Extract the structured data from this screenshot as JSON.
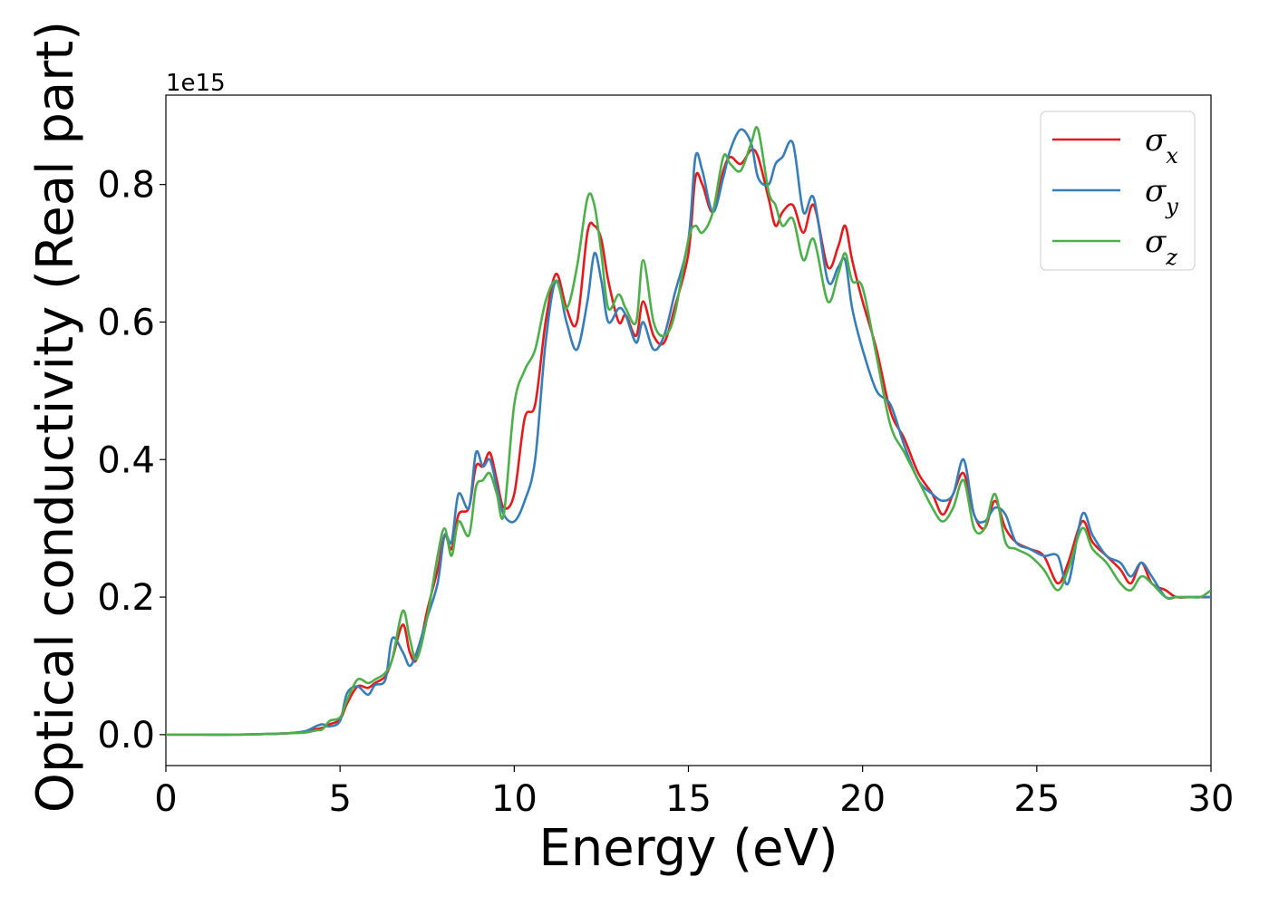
{
  "chart_data": {
    "type": "line",
    "xlabel": "Energy (eV)",
    "ylabel": "Optical conductivity (Real part)",
    "y_offset_text": "1e15",
    "xlim": [
      0,
      30
    ],
    "ylim": [
      -0.045,
      0.93
    ],
    "x_ticks": [
      0,
      5,
      10,
      15,
      20,
      25,
      30
    ],
    "x_tick_labels": [
      "0",
      "5",
      "10",
      "15",
      "20",
      "25",
      "30"
    ],
    "y_ticks": [
      0.0,
      0.2,
      0.4,
      0.6,
      0.8
    ],
    "y_tick_labels": [
      "0.0",
      "0.2",
      "0.4",
      "0.6",
      "0.8"
    ],
    "grid": false,
    "legend_position": "top-right",
    "x": [
      0,
      1,
      2,
      3,
      3.5,
      4,
      4.3,
      4.5,
      4.7,
      5,
      5.2,
      5.5,
      5.8,
      6,
      6.3,
      6.5,
      6.8,
      7,
      7.2,
      7.5,
      7.8,
      8,
      8.2,
      8.4,
      8.7,
      8.9,
      9.1,
      9.3,
      9.5,
      9.7,
      10,
      10.3,
      10.6,
      10.9,
      11.2,
      11.5,
      11.8,
      12.1,
      12.3,
      12.5,
      12.7,
      13,
      13.2,
      13.5,
      13.7,
      14,
      14.3,
      14.6,
      15,
      15.2,
      15.4,
      15.7,
      16,
      16.2,
      16.5,
      16.8,
      17,
      17.3,
      17.5,
      17.7,
      18,
      18.3,
      18.6,
      19,
      19.3,
      19.5,
      19.7,
      20,
      20.4,
      20.8,
      21.2,
      21.6,
      22,
      22.3,
      22.6,
      22.9,
      23.2,
      23.5,
      23.8,
      24.1,
      24.4,
      24.8,
      25.2,
      25.6,
      25.9,
      26.3,
      26.6,
      27,
      27.4,
      27.7,
      28,
      28.3,
      28.7,
      29,
      29.4,
      29.7,
      30
    ],
    "series": [
      {
        "name": "σx",
        "color": "#e41a1c",
        "values": [
          0,
          0,
          0,
          0.001,
          0.002,
          0.004,
          0.008,
          0.01,
          0.015,
          0.022,
          0.045,
          0.07,
          0.068,
          0.075,
          0.085,
          0.11,
          0.16,
          0.12,
          0.11,
          0.18,
          0.24,
          0.29,
          0.27,
          0.32,
          0.33,
          0.39,
          0.39,
          0.41,
          0.37,
          0.33,
          0.35,
          0.46,
          0.48,
          0.6,
          0.67,
          0.62,
          0.6,
          0.73,
          0.74,
          0.72,
          0.66,
          0.6,
          0.61,
          0.58,
          0.63,
          0.58,
          0.57,
          0.62,
          0.7,
          0.81,
          0.8,
          0.76,
          0.82,
          0.84,
          0.83,
          0.85,
          0.84,
          0.78,
          0.74,
          0.76,
          0.77,
          0.73,
          0.77,
          0.68,
          0.71,
          0.74,
          0.69,
          0.63,
          0.56,
          0.47,
          0.43,
          0.38,
          0.35,
          0.32,
          0.35,
          0.38,
          0.32,
          0.3,
          0.34,
          0.3,
          0.28,
          0.27,
          0.26,
          0.22,
          0.25,
          0.31,
          0.28,
          0.26,
          0.24,
          0.22,
          0.25,
          0.22,
          0.21,
          0.2,
          0.2,
          0.2,
          0.2
        ]
      },
      {
        "name": "σy",
        "color": "#377eb8",
        "values": [
          0,
          0,
          0,
          0.001,
          0.002,
          0.005,
          0.012,
          0.015,
          0.012,
          0.02,
          0.06,
          0.07,
          0.058,
          0.072,
          0.08,
          0.14,
          0.12,
          0.1,
          0.12,
          0.17,
          0.22,
          0.29,
          0.28,
          0.35,
          0.33,
          0.41,
          0.39,
          0.4,
          0.36,
          0.32,
          0.31,
          0.34,
          0.4,
          0.57,
          0.66,
          0.6,
          0.56,
          0.63,
          0.7,
          0.66,
          0.6,
          0.62,
          0.61,
          0.57,
          0.6,
          0.56,
          0.58,
          0.64,
          0.72,
          0.84,
          0.82,
          0.76,
          0.81,
          0.85,
          0.88,
          0.86,
          0.81,
          0.8,
          0.83,
          0.84,
          0.86,
          0.76,
          0.78,
          0.66,
          0.68,
          0.69,
          0.62,
          0.56,
          0.5,
          0.48,
          0.42,
          0.37,
          0.35,
          0.34,
          0.35,
          0.4,
          0.32,
          0.31,
          0.33,
          0.32,
          0.28,
          0.27,
          0.26,
          0.26,
          0.22,
          0.32,
          0.29,
          0.26,
          0.25,
          0.23,
          0.25,
          0.23,
          0.2,
          0.2,
          0.2,
          0.2,
          0.2
        ]
      },
      {
        "name": "σz",
        "color": "#4daf4a",
        "values": [
          0,
          0,
          0,
          0.001,
          0.002,
          0.003,
          0.006,
          0.008,
          0.02,
          0.025,
          0.05,
          0.08,
          0.075,
          0.08,
          0.09,
          0.11,
          0.18,
          0.14,
          0.11,
          0.17,
          0.26,
          0.3,
          0.26,
          0.31,
          0.29,
          0.36,
          0.37,
          0.38,
          0.35,
          0.32,
          0.48,
          0.53,
          0.56,
          0.63,
          0.66,
          0.62,
          0.68,
          0.78,
          0.77,
          0.7,
          0.62,
          0.64,
          0.62,
          0.6,
          0.69,
          0.6,
          0.58,
          0.61,
          0.72,
          0.74,
          0.73,
          0.76,
          0.84,
          0.83,
          0.82,
          0.86,
          0.88,
          0.79,
          0.77,
          0.74,
          0.75,
          0.69,
          0.72,
          0.63,
          0.67,
          0.7,
          0.66,
          0.65,
          0.55,
          0.45,
          0.41,
          0.37,
          0.33,
          0.31,
          0.33,
          0.37,
          0.3,
          0.3,
          0.35,
          0.28,
          0.27,
          0.26,
          0.24,
          0.21,
          0.24,
          0.3,
          0.27,
          0.25,
          0.22,
          0.21,
          0.23,
          0.22,
          0.2,
          0.2,
          0.2,
          0.2,
          0.21
        ]
      }
    ]
  }
}
